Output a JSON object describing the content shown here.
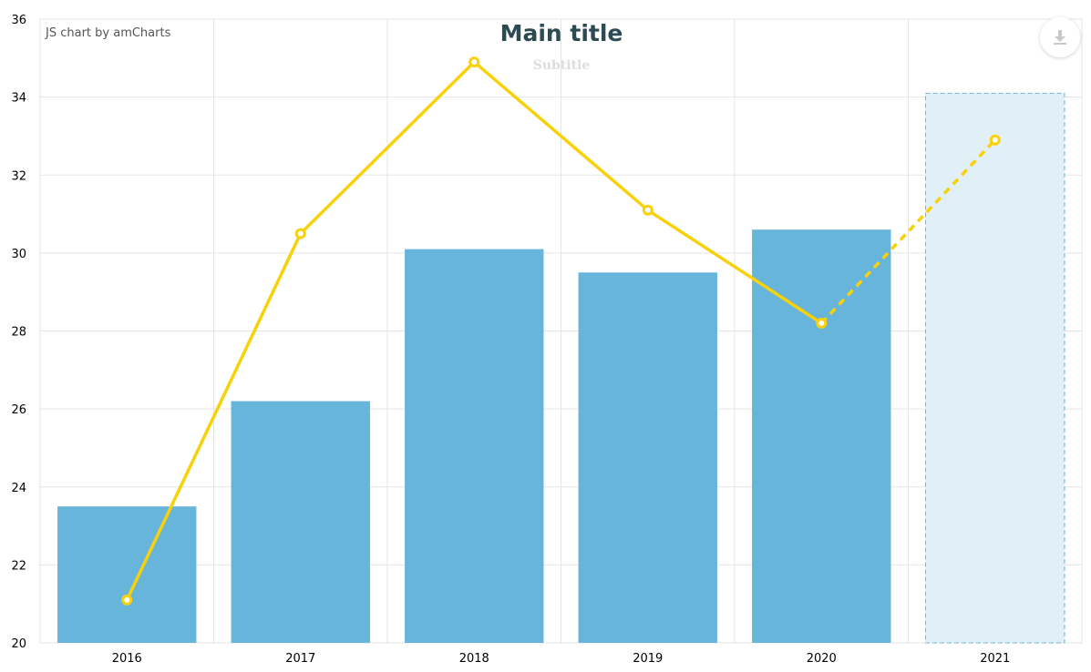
{
  "header": {
    "title": "Main title",
    "subtitle": "Subtitle",
    "credit": "JS chart by amCharts"
  },
  "toolbar": {
    "export_icon": "download-icon"
  },
  "colors": {
    "bar": "#67b5db",
    "bar_projected_fill": "#e1f0f7",
    "bar_projected_stroke": "#67b5db",
    "line": "#f9d10a",
    "grid": "#e5e5e5",
    "title": "#2c4a52"
  },
  "chart_data": {
    "type": "bar",
    "title": "Main title",
    "subtitle": "Subtitle",
    "categories": [
      "2016",
      "2017",
      "2018",
      "2019",
      "2020",
      "2021"
    ],
    "ylim": [
      20,
      36
    ],
    "yticks": [
      20,
      22,
      24,
      26,
      28,
      30,
      32,
      34,
      36
    ],
    "grid": true,
    "series": [
      {
        "type": "bar",
        "values": [
          23.5,
          26.2,
          30.1,
          29.5,
          30.6,
          34.1
        ],
        "projected_from_index": 5
      },
      {
        "type": "line",
        "values": [
          21.1,
          30.5,
          34.9,
          31.1,
          28.2,
          32.9
        ],
        "dashed_from_index": 4
      }
    ]
  }
}
